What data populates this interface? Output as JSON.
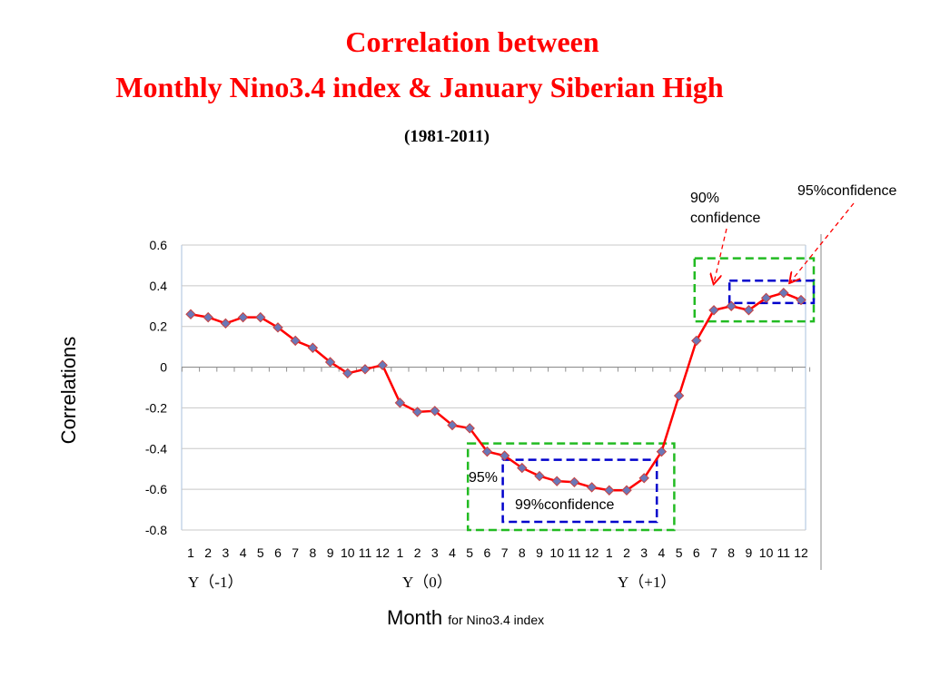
{
  "title_line1": "Correlation between",
  "title_line2": "Monthly Nino3.4 index & January Siberian High",
  "period": "(1981-2011)",
  "annotations": {
    "c90": "90% confidence",
    "c95_top": "95%confidence",
    "c95_bottom": "95%",
    "c99": "99%confidence"
  },
  "year_labels": [
    "Y（-1）",
    "Y（0）",
    "Y（+1）"
  ],
  "xlabel_main": "Month",
  "xlabel_sub": "for Nino3.4 index",
  "colors": {
    "title": "#ff0000",
    "line": "#ff0000",
    "marker": "#6a78b8",
    "box90": "#22bb22",
    "box99": "#0000cc"
  },
  "chart_data": {
    "type": "line",
    "xlabel": "Month for Nino3.4 index",
    "ylabel": "Correlations",
    "ylim": [
      -0.8,
      0.6
    ],
    "yticks": [
      "0.6",
      "0.4",
      "0.2",
      "0",
      "-0.2",
      "-0.4",
      "-0.6",
      "-0.8"
    ],
    "grid": true,
    "categories": [
      "1",
      "2",
      "3",
      "4",
      "5",
      "6",
      "7",
      "8",
      "9",
      "10",
      "11",
      "12",
      "1",
      "2",
      "3",
      "4",
      "5",
      "6",
      "7",
      "8",
      "9",
      "10",
      "11",
      "12",
      "1",
      "2",
      "3",
      "4",
      "5",
      "6",
      "7",
      "8",
      "9",
      "10",
      "11",
      "12"
    ],
    "series": [
      {
        "values": [
          0.26,
          0.245,
          0.215,
          0.245,
          0.245,
          0.195,
          0.13,
          0.095,
          0.025,
          -0.03,
          -0.01,
          0.01,
          -0.175,
          -0.22,
          -0.215,
          -0.285,
          -0.3,
          -0.415,
          -0.435,
          -0.495,
          -0.535,
          -0.56,
          -0.565,
          -0.59,
          -0.605,
          -0.605,
          -0.545,
          -0.415,
          -0.14,
          0.13,
          0.28,
          0.3,
          0.28,
          0.34,
          0.365,
          0.33
        ]
      }
    ],
    "confidence_boxes": [
      {
        "level": "95%",
        "from_index": 16,
        "to_index": 27,
        "ymin": -0.8,
        "ymax": -0.375
      },
      {
        "level": "99%",
        "from_index": 18,
        "to_index": 26,
        "ymin": -0.76,
        "ymax": -0.455
      },
      {
        "level": "90%",
        "from_index": 29,
        "to_index": 35,
        "ymin": 0.225,
        "ymax": 0.535
      },
      {
        "level": "95%",
        "from_index": 31,
        "to_index": 35,
        "ymin": 0.315,
        "ymax": 0.425
      }
    ]
  }
}
